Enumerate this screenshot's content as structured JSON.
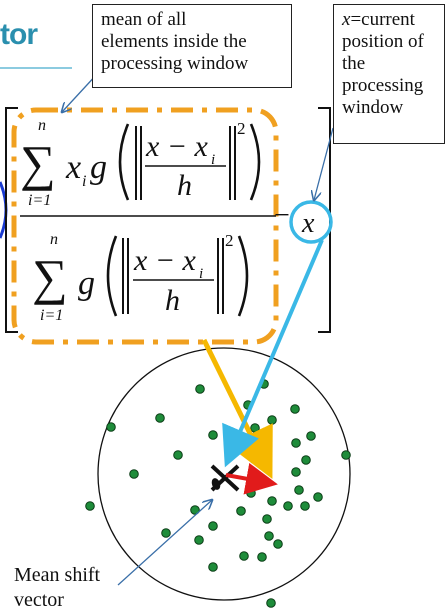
{
  "title_fragment": "tor",
  "callouts": {
    "mean": {
      "lines": [
        "mean of all",
        "elements inside the",
        "processing window"
      ]
    },
    "x": {
      "var": "x",
      "first": "=current",
      "rest": [
        "position of",
        "the",
        "processing",
        "window"
      ]
    }
  },
  "formula": {
    "sum_symbol": "∑",
    "sum_upper": "n",
    "sum_lower": "i=1",
    "x_i": "x",
    "sub_i": "i",
    "g": "g",
    "frac_num": "x − x",
    "frac_den": "h",
    "exponent": "2",
    "minus": "−",
    "x_var": "x"
  },
  "mean_shift_label": [
    "Mean shift",
    "vector"
  ],
  "colors": {
    "orange_dashed_box": "#f0a020",
    "cyan_circle": "#3ab8e6",
    "yellow_arrow": "#f5b800",
    "cyan_arrow": "#3ab8e6",
    "red_arrow": "#e11b1b",
    "dot_fill": "#1e8c3a",
    "left_arc": "#1a3ad0"
  }
}
